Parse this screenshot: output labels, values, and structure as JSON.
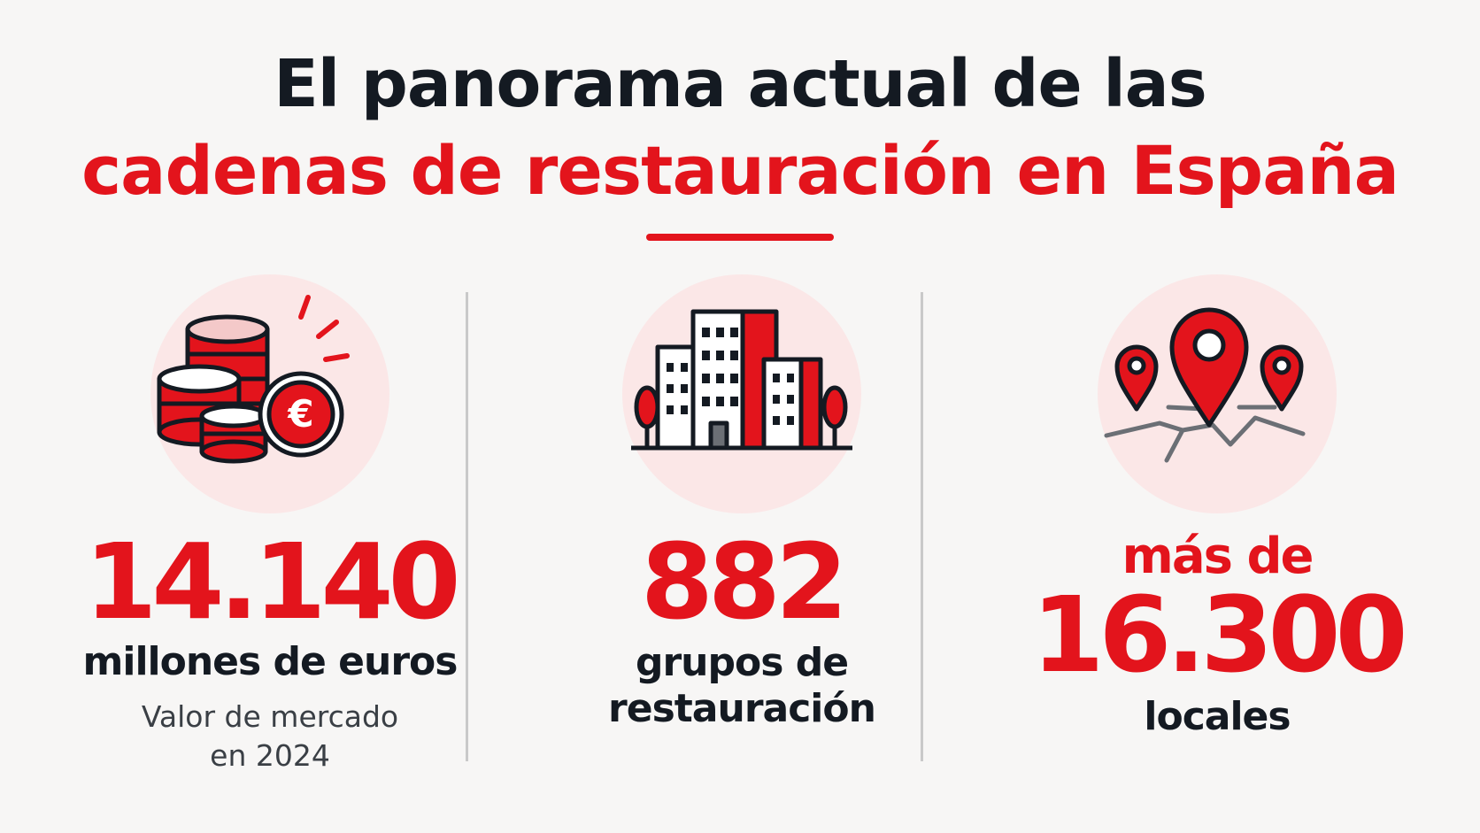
{
  "title": {
    "line1": "El panorama actual de las",
    "line2": "cadenas de restauración en España"
  },
  "stats": [
    {
      "icon": "euro-coins-icon",
      "value": "14.140",
      "label": "millones de euros",
      "sub_line1": "Valor de mercado",
      "sub_line2": "en 2024"
    },
    {
      "icon": "buildings-icon",
      "value": "882",
      "label_line1": "grupos de",
      "label_line2": "restauración"
    },
    {
      "icon": "map-pins-icon",
      "prefix": "más de",
      "value": "16.300",
      "label": "locales"
    }
  ],
  "colors": {
    "accent": "#e3141c",
    "text_dark": "#141a22",
    "icon_circle": "#fbe7e7",
    "background": "#f7f6f5"
  }
}
